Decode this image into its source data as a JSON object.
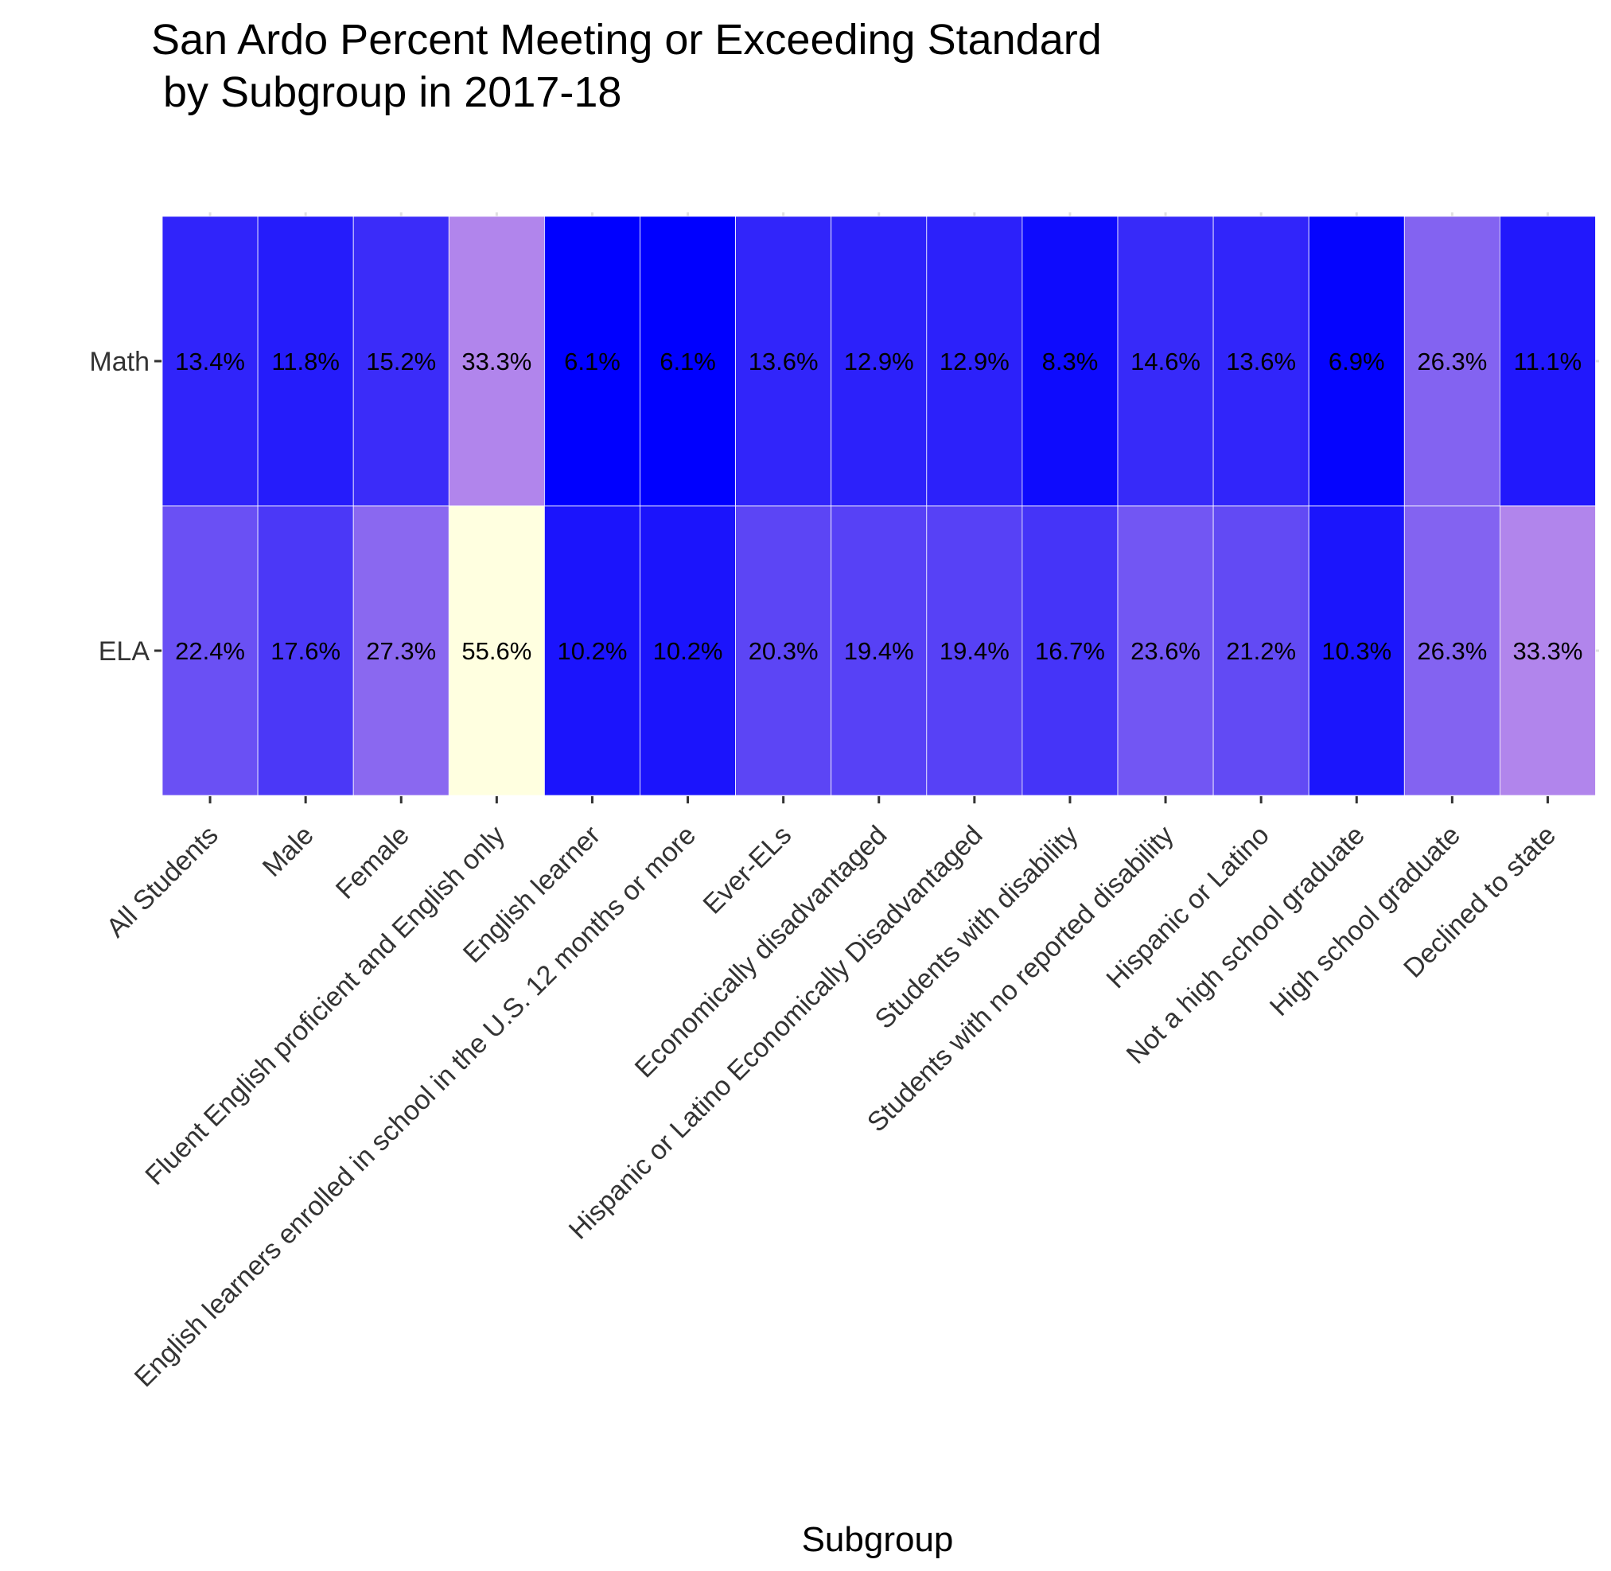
{
  "chart_data": {
    "type": "heatmap",
    "title_lines": [
      "San Ardo Percent Meeting or Exceeding Standard",
      " by Subgroup in 2017-18"
    ],
    "xlabel": "Subgroup",
    "ylabel": "",
    "categories": [
      "All Students",
      "Male",
      "Female",
      "Fluent English proficient and English only",
      "English learner",
      "English learners enrolled in school in the U.S. 12 months or more",
      "Ever-ELs",
      "Economically disadvantaged",
      "Hispanic or Latino Economically Disadvantaged",
      "Students with disability",
      "Students with no reported disability",
      "Hispanic or Latino",
      "Not a high school graduate",
      "High school graduate",
      "Declined to state"
    ],
    "rows": [
      {
        "name": "Math",
        "values": [
          13.4,
          11.8,
          15.2,
          33.3,
          6.1,
          6.1,
          13.6,
          12.9,
          12.9,
          8.3,
          14.6,
          13.6,
          6.9,
          26.3,
          11.1
        ],
        "labels": [
          "13.4%",
          "11.8%",
          "15.2%",
          "33.3%",
          "6.1%",
          "6.1%",
          "13.6%",
          "12.9%",
          "12.9%",
          "8.3%",
          "14.6%",
          "13.6%",
          "6.9%",
          "26.3%",
          "11.1%"
        ]
      },
      {
        "name": "ELA",
        "values": [
          22.4,
          17.6,
          27.3,
          55.6,
          10.2,
          10.2,
          20.3,
          19.4,
          19.4,
          16.7,
          23.6,
          21.2,
          10.3,
          26.3,
          33.3
        ],
        "labels": [
          "22.4%",
          "17.6%",
          "27.3%",
          "55.6%",
          "10.2%",
          "10.2%",
          "20.3%",
          "19.4%",
          "19.4%",
          "16.7%",
          "23.6%",
          "21.2%",
          "10.3%",
          "26.3%",
          "33.3%"
        ]
      }
    ],
    "color_scale": {
      "low": "#0000ff",
      "mid": "#b185ec",
      "mid_value": 33.3,
      "high": "#ffffe0",
      "low_value": 6.1,
      "high_value": 55.6
    },
    "grid": true,
    "legend": "none"
  }
}
